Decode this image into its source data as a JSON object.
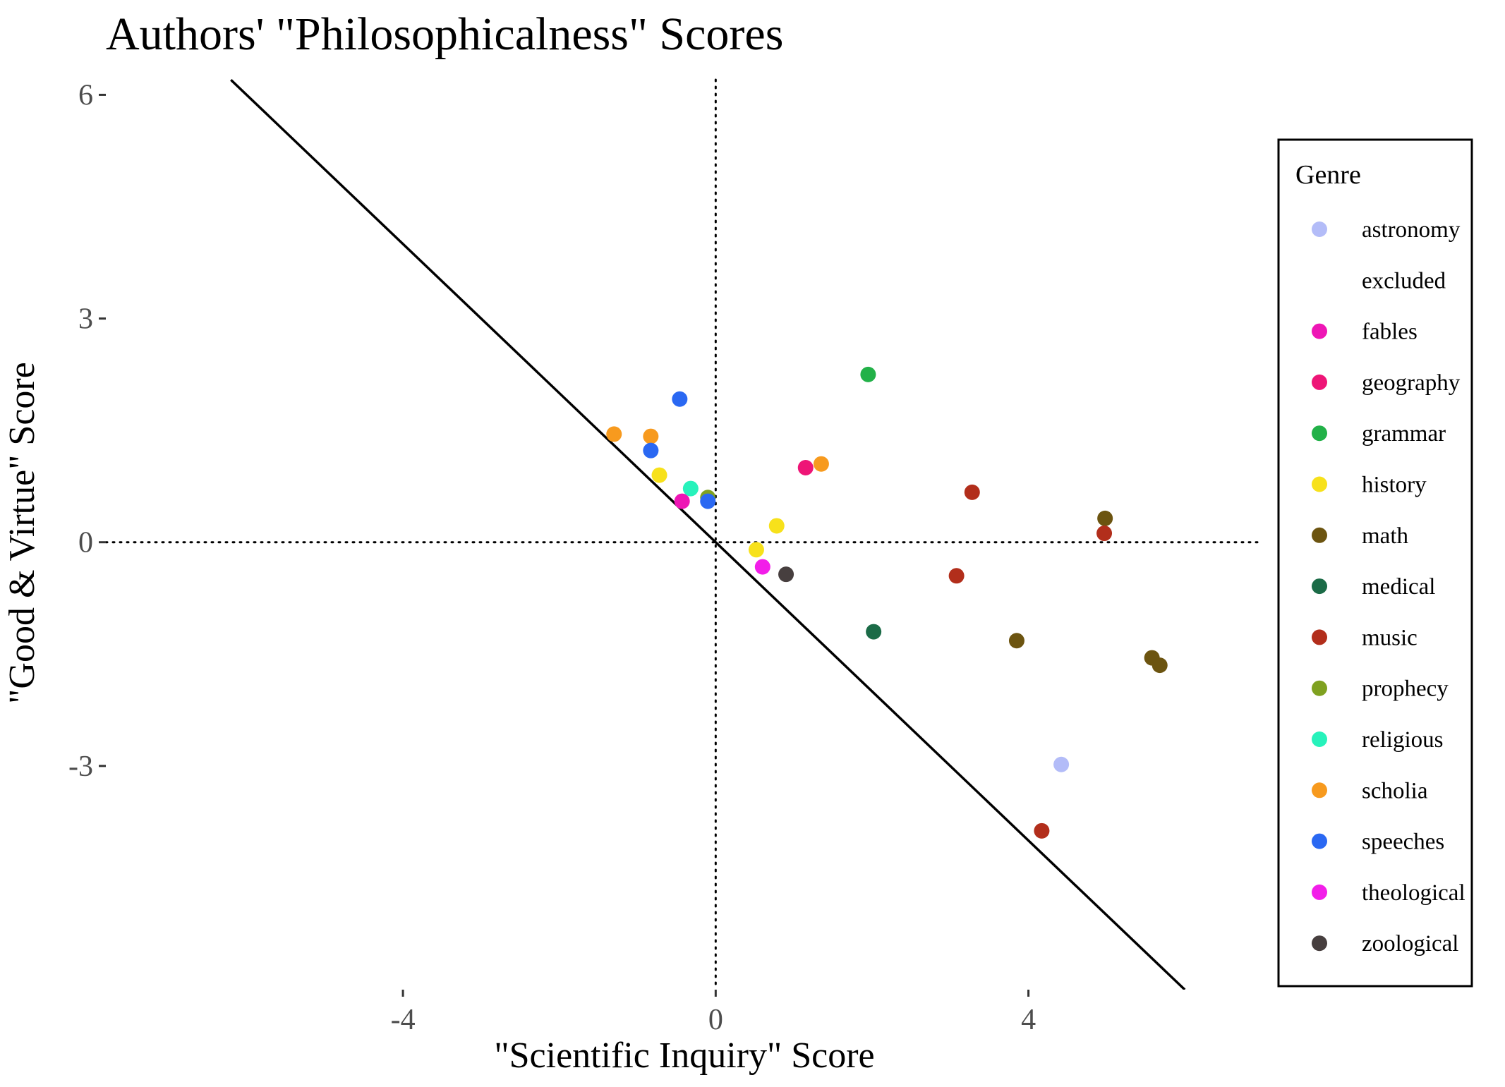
{
  "chart_data": {
    "type": "scatter",
    "title": "Authors' \"Philosophicalness\" Scores",
    "xlabel": "\"Scientific Inquiry\" Score",
    "ylabel": "\"Good & Virtue\" Score",
    "xlim": [
      -7.8,
      7.0
    ],
    "ylim": [
      -6.0,
      6.25
    ],
    "x_ticks": [
      -4,
      0,
      4
    ],
    "x_tick_labels": [
      "-4",
      "0",
      "4"
    ],
    "y_ticks": [
      -3,
      0,
      3,
      6
    ],
    "y_tick_labels": [
      "-3",
      "0",
      "3",
      "6"
    ],
    "grid": false,
    "reference_lines": {
      "diagonal": {
        "slope": -1,
        "intercept": 0
      },
      "vertical_dotted_x": 0,
      "horizontal_dotted_y": 0
    },
    "legend": {
      "title": "Genre",
      "placement": "right",
      "entries": [
        {
          "name": "astronomy",
          "color": "#b3bcf8"
        },
        {
          "name": "excluded",
          "color": "#ffffff"
        },
        {
          "name": "fables",
          "color": "#ee16b5"
        },
        {
          "name": "geography",
          "color": "#ee1577"
        },
        {
          "name": "grammar",
          "color": "#22b148"
        },
        {
          "name": "history",
          "color": "#f7e11b"
        },
        {
          "name": "math",
          "color": "#6c5410"
        },
        {
          "name": "medical",
          "color": "#1b6b47"
        },
        {
          "name": "music",
          "color": "#b22e1b"
        },
        {
          "name": "prophecy",
          "color": "#7fa120"
        },
        {
          "name": "religious",
          "color": "#27f2bb"
        },
        {
          "name": "scholia",
          "color": "#f79a1e"
        },
        {
          "name": "speeches",
          "color": "#2a68f2"
        },
        {
          "name": "theological",
          "color": "#f21ee9"
        },
        {
          "name": "zoological",
          "color": "#473f3f"
        }
      ]
    },
    "series": [
      {
        "name": "astronomy",
        "points": [
          {
            "x": 4.42,
            "y": -2.98
          }
        ]
      },
      {
        "name": "fables",
        "points": [
          {
            "x": -0.43,
            "y": 0.55
          }
        ]
      },
      {
        "name": "geography",
        "points": [
          {
            "x": 1.15,
            "y": 1.0
          }
        ]
      },
      {
        "name": "grammar",
        "points": [
          {
            "x": 1.95,
            "y": 2.25
          }
        ]
      },
      {
        "name": "history",
        "points": [
          {
            "x": -0.72,
            "y": 0.9
          },
          {
            "x": 0.78,
            "y": 0.22
          },
          {
            "x": 0.52,
            "y": -0.1
          }
        ]
      },
      {
        "name": "math",
        "points": [
          {
            "x": 4.98,
            "y": 0.32
          },
          {
            "x": 3.85,
            "y": -1.32
          },
          {
            "x": 5.58,
            "y": -1.55
          },
          {
            "x": 5.68,
            "y": -1.65
          }
        ]
      },
      {
        "name": "medical",
        "points": [
          {
            "x": 2.02,
            "y": -1.2
          }
        ]
      },
      {
        "name": "music",
        "points": [
          {
            "x": 3.28,
            "y": 0.67
          },
          {
            "x": 4.97,
            "y": 0.12
          },
          {
            "x": 3.08,
            "y": -0.45
          },
          {
            "x": 4.17,
            "y": -3.87
          }
        ]
      },
      {
        "name": "prophecy",
        "points": [
          {
            "x": -0.1,
            "y": 0.6
          }
        ]
      },
      {
        "name": "religious",
        "points": [
          {
            "x": -0.32,
            "y": 0.72
          }
        ]
      },
      {
        "name": "scholia",
        "points": [
          {
            "x": -1.3,
            "y": 1.45
          },
          {
            "x": -0.83,
            "y": 1.42
          },
          {
            "x": 1.35,
            "y": 1.05
          }
        ]
      },
      {
        "name": "speeches",
        "points": [
          {
            "x": -0.46,
            "y": 1.92
          },
          {
            "x": -0.83,
            "y": 1.23
          },
          {
            "x": -0.1,
            "y": 0.55
          }
        ]
      },
      {
        "name": "theological",
        "points": [
          {
            "x": 0.6,
            "y": -0.33
          }
        ]
      },
      {
        "name": "zoological",
        "points": [
          {
            "x": 0.9,
            "y": -0.43
          }
        ]
      }
    ]
  }
}
